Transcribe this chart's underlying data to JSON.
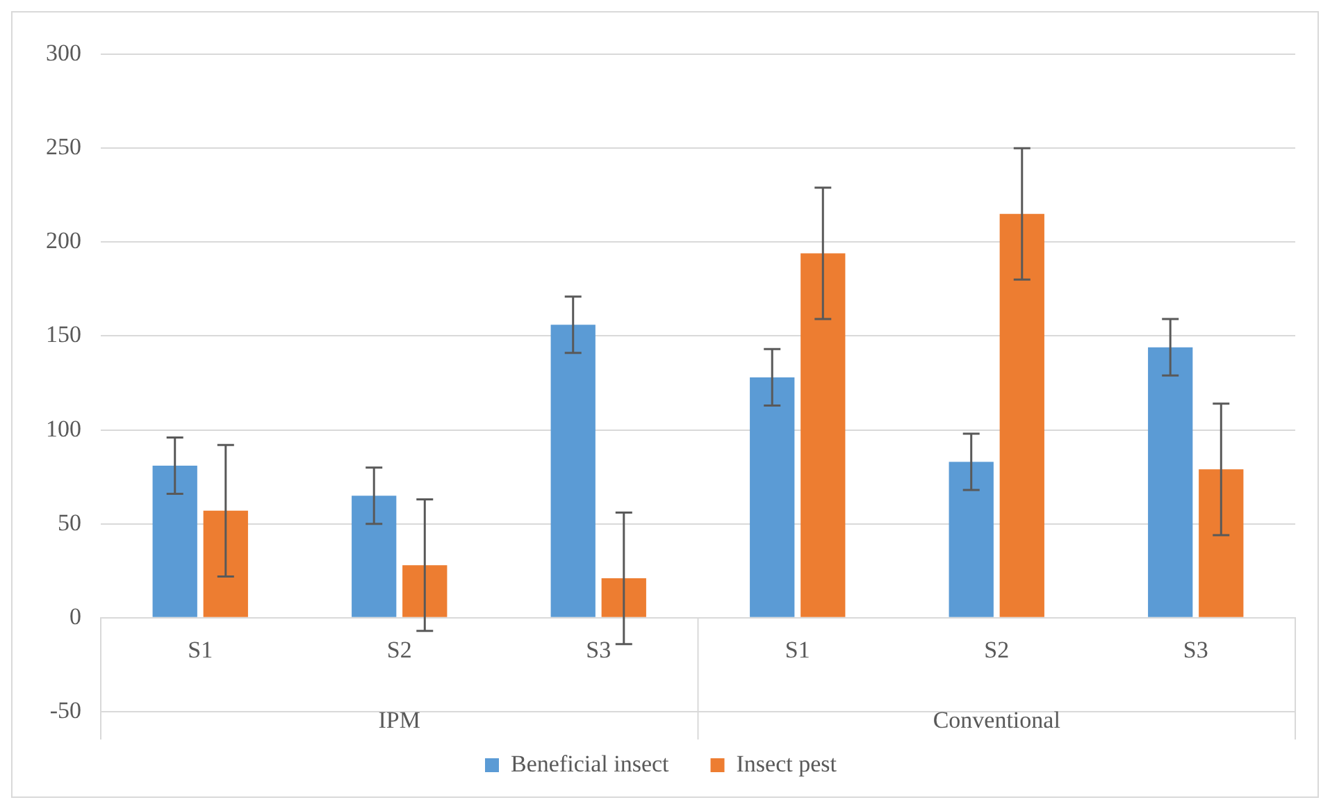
{
  "chart_data": {
    "type": "bar",
    "categories": [
      "S1",
      "S2",
      "S3",
      "S1",
      "S2",
      "S3"
    ],
    "series": [
      {
        "name": "Beneficial insect",
        "color": "#5b9bd5",
        "values": [
          81,
          65,
          156,
          128,
          83,
          144
        ],
        "errors": [
          15,
          15,
          15,
          15,
          15,
          15
        ]
      },
      {
        "name": "Insect pest",
        "color": "#ed7d31",
        "values": [
          57,
          28,
          21,
          194,
          215,
          79
        ],
        "errors": [
          35,
          35,
          35,
          35,
          35,
          35
        ]
      }
    ],
    "ylim": [
      -50,
      300
    ],
    "yticks": [
      -50,
      0,
      50,
      100,
      150,
      200,
      250,
      300
    ],
    "grid": "y",
    "legend": "bottom",
    "annotations": [
      "IPM",
      "Conventional"
    ]
  }
}
